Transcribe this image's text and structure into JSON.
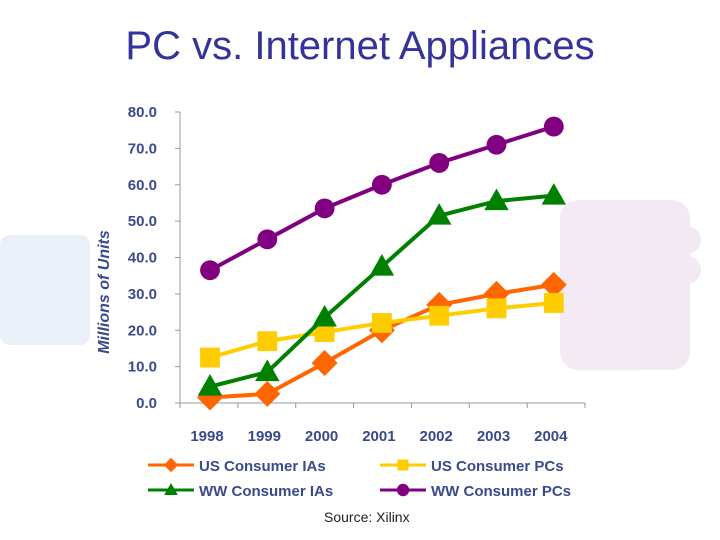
{
  "slide": {
    "title": "PC vs. Internet Appliances",
    "source": "Source: Xilinx"
  },
  "chart_data": {
    "type": "line",
    "title": "",
    "xlabel": "",
    "ylabel": "Millions of Units",
    "categories": [
      "1998",
      "1999",
      "2000",
      "2001",
      "2002",
      "2003",
      "2004"
    ],
    "ylim": [
      0,
      80
    ],
    "yticks": [
      "0.0",
      "10.0",
      "20.0",
      "30.0",
      "40.0",
      "50.0",
      "60.0",
      "70.0",
      "80.0"
    ],
    "grid": false,
    "legend": "bottom",
    "series": [
      {
        "name": "US Consumer IAs",
        "color": "#FF6600",
        "marker": "diamond",
        "values": [
          1.5,
          2.5,
          11.0,
          20.0,
          27.0,
          30.0,
          32.5
        ]
      },
      {
        "name": "US Consumer PCs",
        "color": "#FFCC00",
        "marker": "square",
        "values": [
          12.5,
          17.0,
          19.5,
          22.0,
          24.0,
          26.0,
          27.5
        ]
      },
      {
        "name": "WW Consumer IAs",
        "color": "#008000",
        "marker": "triangle",
        "values": [
          4.5,
          8.5,
          23.5,
          37.5,
          51.5,
          55.5,
          57.0
        ]
      },
      {
        "name": "WW Consumer PCs",
        "color": "#800080",
        "marker": "circle",
        "values": [
          36.5,
          45.0,
          53.5,
          60.0,
          66.0,
          71.0,
          76.0
        ]
      }
    ]
  }
}
